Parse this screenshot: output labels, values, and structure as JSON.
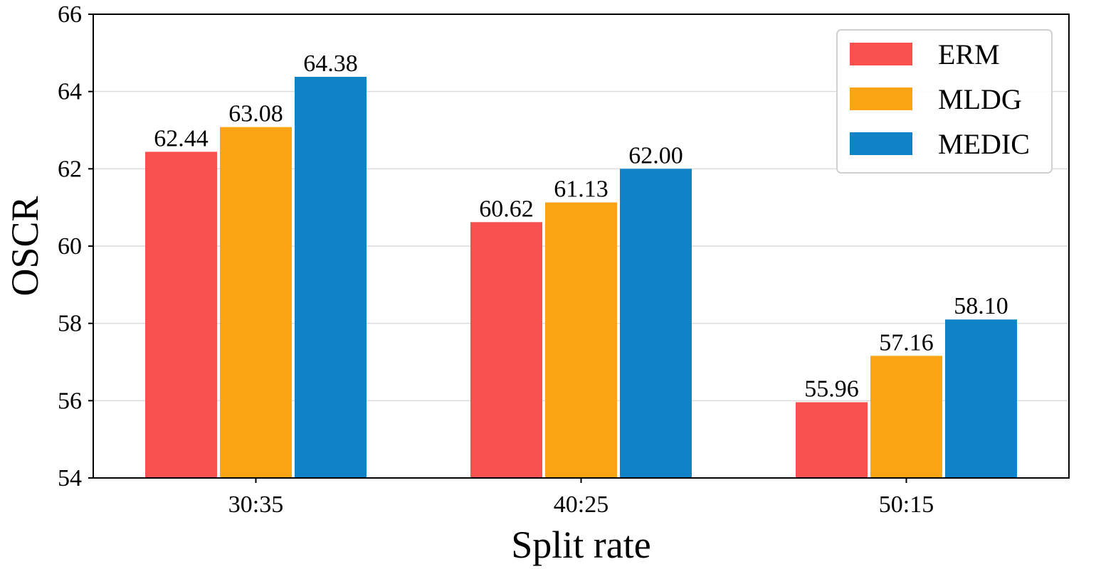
{
  "chart_data": {
    "type": "bar",
    "title": "",
    "xlabel": "Split rate",
    "ylabel": "OSCR",
    "categories": [
      "30:35",
      "40:25",
      "50:15"
    ],
    "series": [
      {
        "name": "ERM",
        "color": "#f84f4f",
        "values": [
          62.44,
          60.62,
          55.96
        ],
        "labels": [
          "62.44",
          "60.62",
          "55.96"
        ]
      },
      {
        "name": "MLDG",
        "color": "#fba414",
        "values": [
          63.08,
          61.13,
          57.16
        ],
        "labels": [
          "63.08",
          "61.13",
          "57.16"
        ]
      },
      {
        "name": "MEDIC",
        "color": "#0f83c5",
        "values": [
          64.38,
          62.0,
          58.1
        ],
        "labels": [
          "64.38",
          "62.00",
          "58.10"
        ]
      }
    ],
    "ylim": [
      54,
      66
    ],
    "yticks": [
      54,
      56,
      58,
      60,
      62,
      64,
      66
    ],
    "grid": "horizontal",
    "legend_position": "top-right"
  }
}
